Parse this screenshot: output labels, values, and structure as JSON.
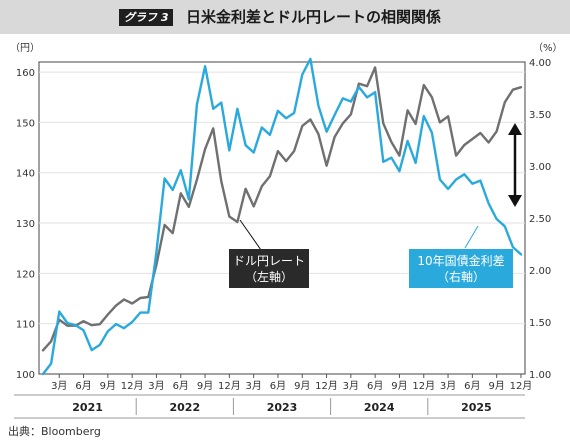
{
  "header": {
    "badge": "グラフ 3",
    "title": "日米金利差とドル円レートの相関関係"
  },
  "source": "出典：Bloomberg",
  "chart_data": {
    "type": "line",
    "title": "日米金利差とドル円レートの相関関係",
    "y_left": {
      "unit": "（円）",
      "ticks": [
        100,
        110,
        120,
        130,
        140,
        150,
        160
      ],
      "range": [
        100,
        162
      ]
    },
    "y_right": {
      "unit": "（%）",
      "ticks": [
        "1.00",
        "1.50",
        "2.00",
        "2.50",
        "3.00",
        "3.50",
        "4.00"
      ],
      "range": [
        1.0,
        4.0
      ]
    },
    "x": {
      "month_labels": [
        "3月",
        "6月",
        "9月",
        "12月",
        "3月",
        "6月",
        "9月",
        "12月",
        "3月",
        "6月",
        "9月",
        "12月",
        "3月",
        "6月",
        "9月",
        "12月",
        "3月",
        "6月",
        "9月",
        "12月"
      ],
      "years": [
        "2021",
        "2022",
        "2023",
        "2024",
        "2025"
      ]
    },
    "series": [
      {
        "name": "ドル円レート",
        "label_lines": [
          "ドル円レート",
          "（左軸）"
        ],
        "axis": "left",
        "color": "#707070",
        "values": [
          104.7,
          106.5,
          110.8,
          109.6,
          109.6,
          110.5,
          109.7,
          109.9,
          111.8,
          113.6,
          114.8,
          114.0,
          115.1,
          115.3,
          121.7,
          129.6,
          128.0,
          135.9,
          133.2,
          138.6,
          144.7,
          148.8,
          138.3,
          131.3,
          130.2,
          136.8,
          133.3,
          137.3,
          139.3,
          144.3,
          142.3,
          144.3,
          149.3,
          150.6,
          147.7,
          141.4,
          147.1,
          149.8,
          151.6,
          157.7,
          157.2,
          160.9,
          149.8,
          146.1,
          143.4,
          152.4,
          149.7,
          157.4,
          155.0,
          150.0,
          151.2,
          143.4,
          145.5,
          146.7,
          147.9,
          146.0,
          148.2,
          154.0,
          156.5,
          157.0
        ]
      },
      {
        "name": "10年国債金利差",
        "label_lines": [
          "10年国債金利差",
          "（右軸）"
        ],
        "axis": "right",
        "color": "#2aa9dc",
        "values": [
          1.0,
          1.1,
          1.6,
          1.49,
          1.47,
          1.42,
          1.23,
          1.28,
          1.41,
          1.48,
          1.44,
          1.5,
          1.59,
          1.59,
          2.17,
          2.88,
          2.77,
          2.96,
          2.68,
          3.59,
          3.96,
          3.55,
          3.61,
          3.15,
          3.55,
          3.2,
          3.13,
          3.37,
          3.3,
          3.53,
          3.46,
          3.51,
          3.88,
          4.03,
          3.58,
          3.33,
          3.49,
          3.65,
          3.62,
          3.76,
          3.66,
          3.71,
          3.04,
          3.08,
          2.95,
          3.24,
          3.03,
          3.48,
          3.32,
          2.87,
          2.78,
          2.87,
          2.92,
          2.83,
          2.86,
          2.64,
          2.49,
          2.42,
          2.22,
          2.15
        ]
      }
    ],
    "annotation": "double-arrow"
  }
}
